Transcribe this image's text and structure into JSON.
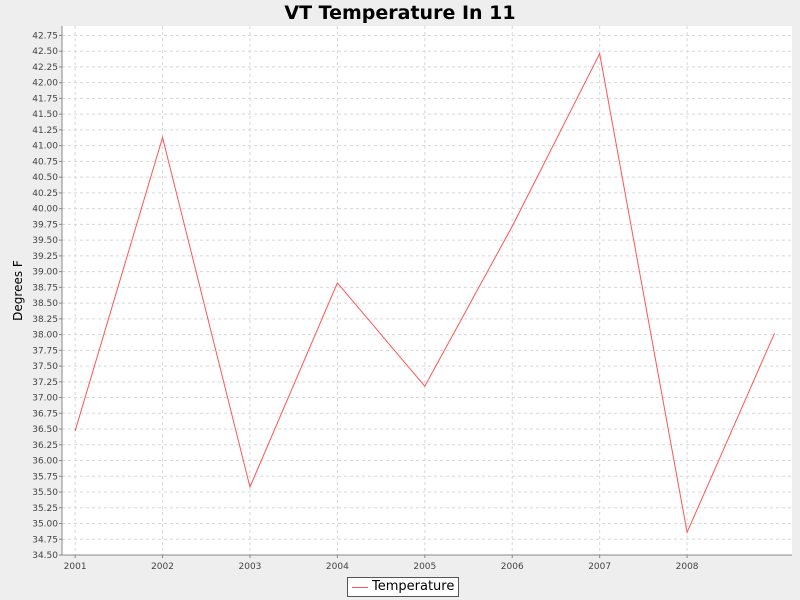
{
  "chart_data": {
    "type": "line",
    "title": "VT Temperature In 11",
    "xlabel": "",
    "ylabel": "Degrees F",
    "x": [
      2001,
      2002,
      2003,
      2004,
      2005,
      2006,
      2007,
      2008,
      2009
    ],
    "x_tick_labels": [
      "2001",
      "2002",
      "2003",
      "2004",
      "2005",
      "2006",
      "2007",
      "2008"
    ],
    "xlim": [
      2000.85,
      2009.2
    ],
    "ylim": [
      34.5,
      42.9
    ],
    "y_tick_step": 0.25,
    "grid": true,
    "legend_position": "bottom-center",
    "series": [
      {
        "name": "Temperature",
        "color": "#ff5555",
        "values": [
          36.47,
          41.13,
          35.58,
          38.82,
          37.18,
          39.72,
          42.46,
          34.86,
          38.02
        ]
      }
    ]
  }
}
